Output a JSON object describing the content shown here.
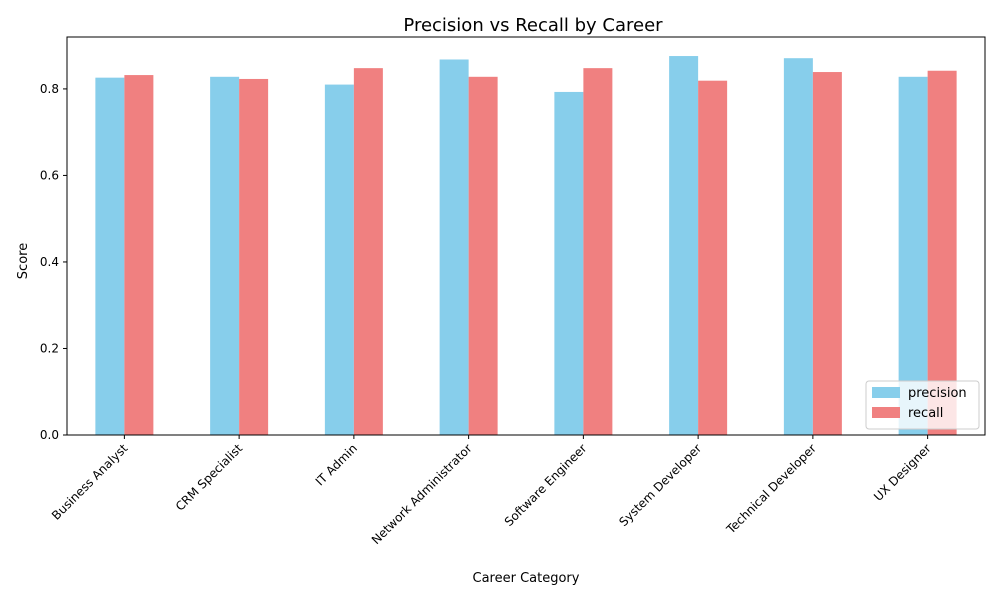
{
  "chart_data": {
    "type": "bar",
    "title": "Precision vs Recall by Career",
    "xlabel": "Career Category",
    "ylabel": "Score",
    "categories": [
      "Business Analyst",
      "CRM Specialist",
      "IT Admin",
      "Network Administrator",
      "Software Engineer",
      "System Developer",
      "Technical Developer",
      "UX Designer"
    ],
    "series": [
      {
        "name": "precision",
        "color": "#87ceeb",
        "values": [
          0.826,
          0.828,
          0.81,
          0.868,
          0.793,
          0.876,
          0.871,
          0.828
        ]
      },
      {
        "name": "recall",
        "color": "#f08080",
        "values": [
          0.832,
          0.823,
          0.848,
          0.828,
          0.848,
          0.819,
          0.839,
          0.842
        ]
      }
    ],
    "ylim": [
      0,
      0.92
    ],
    "yticks": [
      "0.0",
      "0.2",
      "0.4",
      "0.6",
      "0.8"
    ],
    "legend_position": "bottom-right",
    "grid": false
  }
}
